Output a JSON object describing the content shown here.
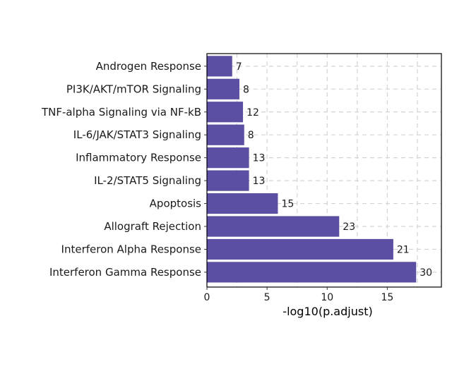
{
  "chart_data": {
    "type": "bar",
    "orientation": "horizontal",
    "title": "",
    "xlabel": "-log10(p.adjust)",
    "ylabel": "",
    "xlim": [
      0,
      19.5
    ],
    "xticks": [
      0,
      5,
      10,
      15
    ],
    "grid": true,
    "bar_color": "#5b4fa3",
    "categories": [
      "Androgen Response",
      "PI3K/AKT/mTOR Signaling",
      "TNF-alpha Signaling via NF-kB",
      "IL-6/JAK/STAT3 Signaling",
      "Inflammatory Response",
      "IL-2/STAT5 Signaling",
      "Apoptosis",
      "Allograft Rejection",
      "Interferon Alpha Response",
      "Interferon Gamma Response"
    ],
    "values": [
      2.1,
      2.7,
      3.0,
      3.1,
      3.5,
      3.5,
      5.9,
      11.0,
      15.5,
      17.4
    ],
    "labels": [
      "7",
      "8",
      "12",
      "8",
      "13",
      "13",
      "15",
      "23",
      "21",
      "30"
    ]
  }
}
